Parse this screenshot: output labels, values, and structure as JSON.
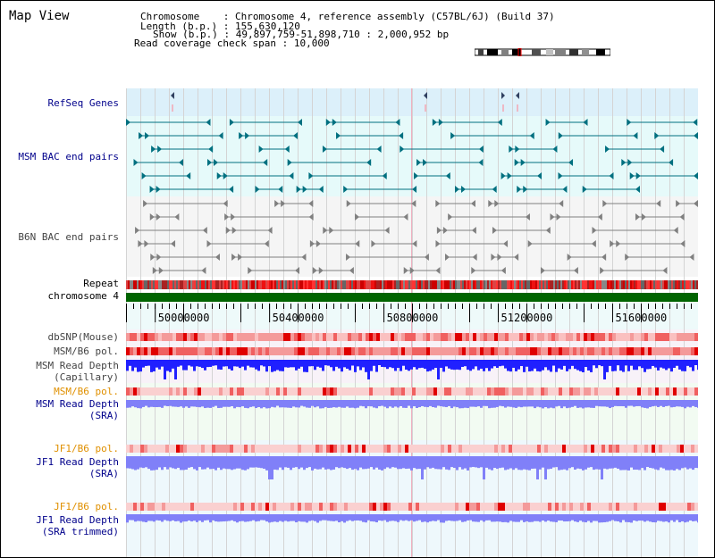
{
  "header": {
    "title": "Map View",
    "chromosome_label": "Chromosome",
    "chromosome_value": "Chromosome 4, reference assembly (C57BL/6J) (Build 37)",
    "length_label": "Length (b.p.)",
    "length_value": "155,630,120",
    "show_label": "Show (b.p.)",
    "show_value": "49,897,759-51,898,710 : 2,000,952 bp",
    "coverage_label": "Read coverage check span",
    "coverage_value": "10,000"
  },
  "tracks": {
    "refseq": "RefSeq Genes",
    "msm_bac": "MSM BAC end pairs",
    "b6n_bac": "B6N BAC end pairs",
    "repeat": "Repeat",
    "chromosome": "chromosome 4",
    "dbsnp": "dbSNP(Mouse)",
    "msm_b6_pol": "MSM/B6 pol.",
    "msm_depth_cap_1": "MSM Read Depth",
    "msm_depth_cap_2": "(Capillary)",
    "msm_b6_pol_sra": "MSM/B6 pol.",
    "msm_depth_sra_1": "MSM Read Depth",
    "msm_depth_sra_2": "(SRA)",
    "jf1_b6_pol": "JF1/B6 pol.",
    "jf1_depth_1": "JF1 Read Depth",
    "jf1_depth_2": "(SRA)",
    "jf1_b6_pol_trim": "JF1/B6 pol.",
    "jf1_depth_trim_1": "JF1 Read Depth",
    "jf1_depth_trim_2": "(SRA trimmed)"
  },
  "ruler": {
    "start_bp": 49897759,
    "end_bp": 51898710,
    "ticks": [
      "50000000",
      "50400000",
      "50800000",
      "51200000",
      "51600000"
    ]
  },
  "colors": {
    "refseq_bg": "#dcf0fa",
    "msm_bg": "#e6fafa",
    "b6n_bg": "#f5f5f5",
    "msm_feature": "#007080",
    "b6n_feature": "#808080",
    "refseq_feature": "#304060",
    "chromosome_bar": "#006400",
    "depth_capillary": "#2020ff",
    "depth_sra": "#8080f8",
    "label_blue": "#00008b",
    "label_orange": "#e09000",
    "label_gray": "#444444",
    "snp_red": "#e00000"
  }
}
